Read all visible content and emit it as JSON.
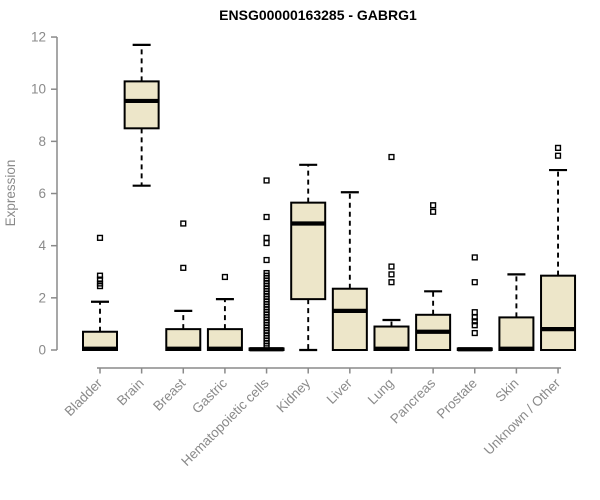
{
  "chart_data": {
    "type": "boxplot",
    "title": "ENSG00000163285 - GABRG1",
    "ylabel": "Expression",
    "xlabel": "",
    "ylim": [
      0,
      12
    ],
    "yticks": [
      0,
      2,
      4,
      6,
      8,
      10,
      12
    ],
    "grid": false,
    "legend": "none",
    "categories": [
      "Bladder",
      "Brain",
      "Breast",
      "Gastric",
      "Hematopoietic cells",
      "Kidney",
      "Liver",
      "Lung",
      "Pancreas",
      "Prostate",
      "Skin",
      "Unknown / Other"
    ],
    "boxes": [
      {
        "category": "Bladder",
        "whisker_low": 0,
        "q1": 0,
        "median": 0.05,
        "q3": 0.7,
        "whisker_high": 1.85,
        "outliers": [
          2.45,
          2.55,
          2.7,
          2.85,
          4.3
        ]
      },
      {
        "category": "Brain",
        "whisker_low": 6.3,
        "q1": 8.5,
        "median": 9.55,
        "q3": 10.3,
        "whisker_high": 11.7,
        "outliers": []
      },
      {
        "category": "Breast",
        "whisker_low": 0,
        "q1": 0,
        "median": 0.05,
        "q3": 0.8,
        "whisker_high": 1.5,
        "outliers": [
          3.15,
          4.85
        ]
      },
      {
        "category": "Gastric",
        "whisker_low": 0,
        "q1": 0,
        "median": 0.05,
        "q3": 0.8,
        "whisker_high": 1.95,
        "outliers": [
          2.8
        ]
      },
      {
        "category": "Hematopoietic cells",
        "whisker_low": 0,
        "q1": 0,
        "median": 0.03,
        "q3": 0.06,
        "whisker_high": 0.06,
        "outliers": [
          0.15,
          0.25,
          0.35,
          0.45,
          0.55,
          0.65,
          0.75,
          0.85,
          0.95,
          1.05,
          1.15,
          1.25,
          1.35,
          1.45,
          1.55,
          1.65,
          1.75,
          1.85,
          1.95,
          2.05,
          2.15,
          2.25,
          2.35,
          2.45,
          2.55,
          2.65,
          2.75,
          2.85,
          2.95,
          3.45,
          4.1,
          4.3,
          5.1,
          6.5
        ]
      },
      {
        "category": "Kidney",
        "whisker_low": 0,
        "q1": 1.95,
        "median": 4.85,
        "q3": 5.65,
        "whisker_high": 7.1,
        "outliers": []
      },
      {
        "category": "Liver",
        "whisker_low": 0,
        "q1": 0,
        "median": 1.5,
        "q3": 2.35,
        "whisker_high": 6.05,
        "outliers": []
      },
      {
        "category": "Lung",
        "whisker_low": 0,
        "q1": 0,
        "median": 0.05,
        "q3": 0.9,
        "whisker_high": 1.15,
        "outliers": [
          2.6,
          2.9,
          3.2,
          7.4
        ]
      },
      {
        "category": "Pancreas",
        "whisker_low": 0,
        "q1": 0,
        "median": 0.7,
        "q3": 1.35,
        "whisker_high": 2.25,
        "outliers": [
          5.3,
          5.55
        ]
      },
      {
        "category": "Prostate",
        "whisker_low": 0,
        "q1": 0,
        "median": 0.03,
        "q3": 0.06,
        "whisker_high": 0.06,
        "outliers": [
          0.65,
          0.95,
          1.1,
          1.25,
          1.45,
          2.6,
          3.55
        ]
      },
      {
        "category": "Skin",
        "whisker_low": 0,
        "q1": 0,
        "median": 0.05,
        "q3": 1.25,
        "whisker_high": 2.9,
        "outliers": []
      },
      {
        "category": "Unknown / Other",
        "whisker_low": 0,
        "q1": 0,
        "median": 0.8,
        "q3": 2.85,
        "whisker_high": 6.9,
        "outliers": [
          7.45,
          7.75
        ]
      }
    ],
    "colors": {
      "box_fill": "#EDE6C9",
      "box_border": "#000000",
      "median": "#000000",
      "whisker": "#000000",
      "outlier": "#000000",
      "axis": "#8A8A8A",
      "axis_text": "#8A8A8A",
      "title": "#000000",
      "background": "#FFFFFF"
    }
  }
}
